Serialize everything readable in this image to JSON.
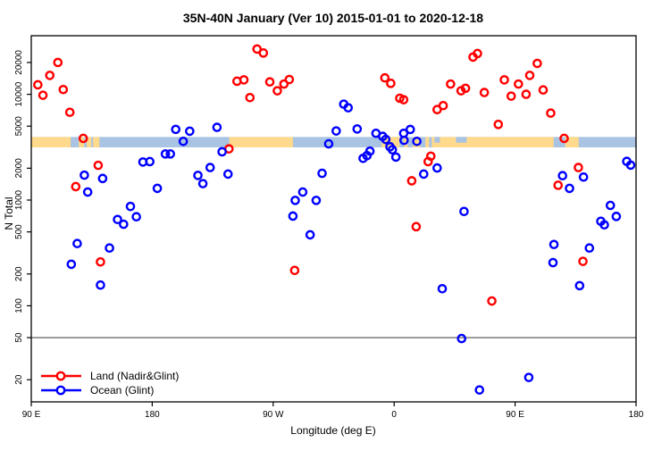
{
  "chart_data": {
    "type": "scatter",
    "title": "35N-40N January (Ver 10)   2015-01-01 to 2020-12-18",
    "xlabel": "Longitude (deg E)",
    "ylabel": "N Total",
    "x_axis": {
      "note": "longitude wrapped eastward, left edge 90E, spanning 450 degrees",
      "span_deg": 450,
      "ticks": [
        {
          "t": 0,
          "label": "90 E"
        },
        {
          "t": 90,
          "label": "180"
        },
        {
          "t": 180,
          "label": "90 W"
        },
        {
          "t": 270,
          "label": "0"
        },
        {
          "t": 360,
          "label": "90 E"
        },
        {
          "t": 450,
          "label": "180"
        }
      ]
    },
    "y_axis": {
      "scale": "log",
      "range": [
        12,
        36000
      ],
      "ticks": [
        20,
        50,
        100,
        200,
        500,
        1000,
        2000,
        5000,
        10000,
        20000
      ]
    },
    "reference_line_n": 50,
    "colors": {
      "land_points": "#ff0000",
      "ocean_points": "#0000ff",
      "band_land": "#ffd98c",
      "band_ocean": "#a9c3e2",
      "reference_line": "#4d4d4d"
    },
    "land_ocean_band": {
      "n_top": 3950,
      "n_bottom": 3150,
      "ocean_extent_deg": [
        0,
        450
      ],
      "land_segments_deg": [
        [
          0,
          29.3
        ],
        [
          35.3,
          39.3
        ],
        [
          41.3,
          44.7
        ],
        [
          46,
          50.7
        ],
        [
          147.3,
          194.7
        ],
        [
          260.7,
          274
        ],
        [
          277.3,
          280
        ],
        [
          284,
          289.3
        ],
        [
          293.3,
          296
        ],
        [
          298,
          388.7
        ],
        [
          397.3,
          407.3
        ]
      ],
      "ocean_patches_deg": [
        {
          "range": [
            300,
            304
          ],
          "half_height": true
        },
        {
          "range": [
            316,
            324
          ],
          "half_height": true
        }
      ]
    },
    "series": [
      {
        "name": "Land (Nadir&Glint)",
        "color_key": "land_points",
        "points": [
          [
            19.8,
            20000
          ],
          [
            13.8,
            15100
          ],
          [
            4.9,
            12300
          ],
          [
            23.8,
            11100
          ],
          [
            8.7,
            9800
          ],
          [
            28.7,
            6760
          ],
          [
            38.7,
            3830
          ],
          [
            49.8,
            2130
          ],
          [
            33.1,
            1340
          ],
          [
            51.5,
            260
          ],
          [
            196,
            216
          ],
          [
            147.1,
            3050
          ],
          [
            168,
            26800
          ],
          [
            172.7,
            24600
          ],
          [
            153.1,
            13300
          ],
          [
            158.2,
            13700
          ],
          [
            177.5,
            13100
          ],
          [
            192,
            13800
          ],
          [
            188,
            12500
          ],
          [
            183.1,
            10800
          ],
          [
            162.7,
            9310
          ],
          [
            328.7,
            22500
          ],
          [
            332,
            24300
          ],
          [
            263.1,
            14300
          ],
          [
            267.5,
            12700
          ],
          [
            274.2,
            9180
          ],
          [
            277.1,
            8890
          ],
          [
            312,
            12500
          ],
          [
            319.8,
            10800
          ],
          [
            323.1,
            11400
          ],
          [
            337.1,
            10400
          ],
          [
            306.5,
            7820
          ],
          [
            302,
            7170
          ],
          [
            347.5,
            5190
          ],
          [
            297.3,
            2600
          ],
          [
            295.3,
            2310
          ],
          [
            283.1,
            1520
          ],
          [
            286.4,
            560
          ],
          [
            376.5,
            19600
          ],
          [
            370.9,
            15100
          ],
          [
            352,
            13700
          ],
          [
            362.5,
            12500
          ],
          [
            380.9,
            11000
          ],
          [
            368.2,
            10000
          ],
          [
            357.1,
            9610
          ],
          [
            386.5,
            6640
          ],
          [
            396.5,
            3830
          ],
          [
            407.1,
            2030
          ],
          [
            392,
            1380
          ],
          [
            342.7,
            111
          ],
          [
            410.5,
            263
          ]
        ]
      },
      {
        "name": "Ocean (Glint)",
        "color_key": "ocean_points",
        "points": [
          [
            107.5,
            4660
          ],
          [
            117.9,
            4480
          ],
          [
            113.1,
            3590
          ],
          [
            88.2,
            2310
          ],
          [
            83.1,
            2290
          ],
          [
            99.8,
            2730
          ],
          [
            103.5,
            2730
          ],
          [
            39.5,
            1720
          ],
          [
            53.1,
            1600
          ],
          [
            42,
            1190
          ],
          [
            93.8,
            1290
          ],
          [
            73.8,
            870
          ],
          [
            64.2,
            655
          ],
          [
            68.7,
            590
          ],
          [
            78.2,
            695
          ],
          [
            34.2,
            388
          ],
          [
            58.2,
            352
          ],
          [
            29.8,
            247
          ],
          [
            51.5,
            157
          ],
          [
            138.2,
            4870
          ],
          [
            226.9,
            4500
          ],
          [
            221.3,
            3400
          ],
          [
            142,
            2860
          ],
          [
            133.1,
            2030
          ],
          [
            124,
            1710
          ],
          [
            127.7,
            1430
          ],
          [
            146.4,
            1760
          ],
          [
            216.4,
            1790
          ],
          [
            202,
            1190
          ],
          [
            196.4,
            993
          ],
          [
            212,
            993
          ],
          [
            194.7,
            705
          ],
          [
            207.5,
            469
          ],
          [
            232.5,
            8070
          ],
          [
            235.8,
            7460
          ],
          [
            242.5,
            4700
          ],
          [
            256.5,
            4280
          ],
          [
            261.5,
            4000
          ],
          [
            263.8,
            3740
          ],
          [
            277.1,
            4280
          ],
          [
            282,
            4650
          ],
          [
            277.4,
            3670
          ],
          [
            286.9,
            3590
          ],
          [
            266.9,
            3190
          ],
          [
            268.7,
            2990
          ],
          [
            271.3,
            2550
          ],
          [
            252,
            2900
          ],
          [
            246.9,
            2480
          ],
          [
            249.8,
            2630
          ],
          [
            302,
            2010
          ],
          [
            292,
            1760
          ],
          [
            322,
            780
          ],
          [
            443.1,
            2320
          ],
          [
            446,
            2140
          ],
          [
            395.3,
            1700
          ],
          [
            400.5,
            1290
          ],
          [
            410.9,
            1650
          ],
          [
            430.9,
            890
          ],
          [
            435.3,
            700
          ],
          [
            423.8,
            630
          ],
          [
            426.4,
            583
          ],
          [
            305.8,
            145
          ],
          [
            388.2,
            256
          ],
          [
            388.9,
            380
          ],
          [
            415.3,
            352
          ],
          [
            408,
            155
          ],
          [
            320.2,
            49
          ],
          [
            370.2,
            21
          ],
          [
            333.5,
            16
          ]
        ]
      }
    ],
    "legend_position": "bottom-left"
  }
}
